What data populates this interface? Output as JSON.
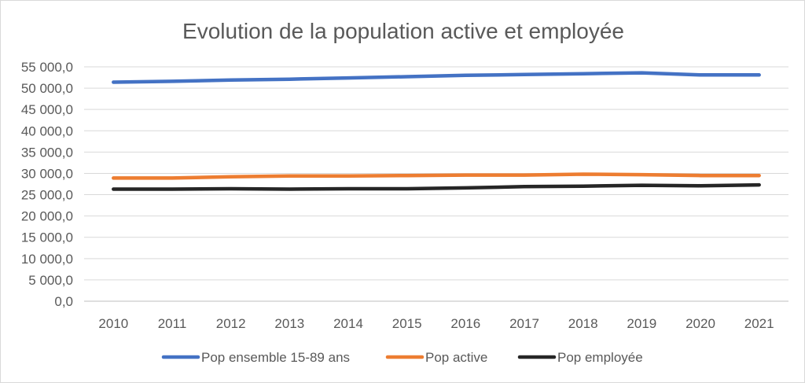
{
  "chart_data": {
    "type": "line",
    "title": "Evolution de la population active et employée",
    "xlabel": "",
    "ylabel": "",
    "categories": [
      "2010",
      "2011",
      "2012",
      "2013",
      "2014",
      "2015",
      "2016",
      "2017",
      "2018",
      "2019",
      "2020",
      "2021"
    ],
    "ylim": [
      0,
      55000
    ],
    "y_ticks": [
      0,
      5000,
      10000,
      15000,
      20000,
      25000,
      30000,
      35000,
      40000,
      45000,
      50000,
      55000
    ],
    "y_tick_labels": [
      "0,0",
      "5 000,0",
      "10 000,0",
      "15 000,0",
      "20 000,0",
      "25 000,0",
      "30 000,0",
      "35 000,0",
      "40 000,0",
      "45 000,0",
      "50 000,0",
      "55 000,0"
    ],
    "grid": true,
    "legend_position": "bottom",
    "series": [
      {
        "name": "Pop ensemble 15-89 ans",
        "color": "#4472c4",
        "values": [
          51400,
          51600,
          51900,
          52100,
          52400,
          52700,
          53000,
          53200,
          53400,
          53600,
          53100,
          53100
        ]
      },
      {
        "name": "Pop active",
        "color": "#ed7d31",
        "values": [
          28900,
          28900,
          29200,
          29400,
          29400,
          29500,
          29600,
          29600,
          29800,
          29700,
          29500,
          29500
        ]
      },
      {
        "name": "Pop employée",
        "color": "#262626",
        "values": [
          26300,
          26300,
          26400,
          26300,
          26400,
          26400,
          26600,
          26900,
          27000,
          27200,
          27100,
          27300
        ]
      }
    ]
  }
}
